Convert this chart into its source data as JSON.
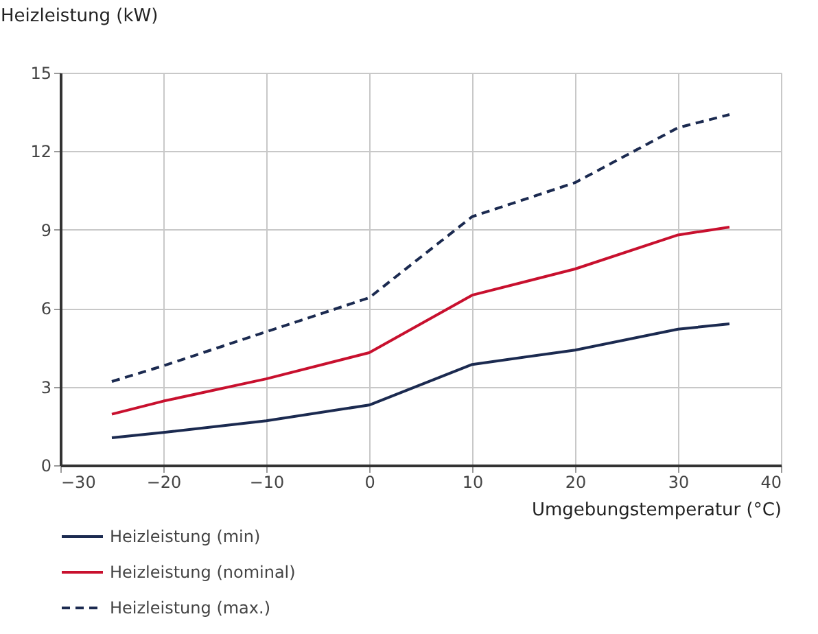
{
  "chart_data": {
    "type": "line",
    "xlabel": "Umgebungstemperatur (°C)",
    "ylabel": "Heizleistung (kW)",
    "x": [
      -25,
      -20,
      -10,
      0,
      10,
      20,
      30,
      35
    ],
    "series": [
      {
        "name": "Heizleistung (min)",
        "color": "#1b2a50",
        "line_style": "solid",
        "values": [
          1.05,
          1.25,
          1.7,
          2.3,
          3.85,
          4.4,
          5.2,
          5.4
        ]
      },
      {
        "name": "Heizleistung (nominal)",
        "color": "#c8102e",
        "line_style": "solid",
        "values": [
          1.95,
          2.45,
          3.3,
          4.3,
          6.5,
          7.5,
          8.8,
          9.1
        ]
      },
      {
        "name": "Heizleistung (max.)",
        "color": "#1b2a50",
        "line_style": "dashed",
        "values": [
          3.2,
          3.8,
          5.1,
          6.4,
          9.5,
          10.8,
          12.9,
          13.4
        ]
      }
    ],
    "xlim": [
      -30,
      40
    ],
    "xticks": [
      -30,
      -20,
      -10,
      0,
      10,
      20,
      30,
      40
    ],
    "ylim": [
      0,
      15
    ],
    "yticks": [
      0,
      3,
      6,
      9,
      12,
      15
    ],
    "grid": true,
    "legend": "bottom left",
    "marker": "none"
  }
}
